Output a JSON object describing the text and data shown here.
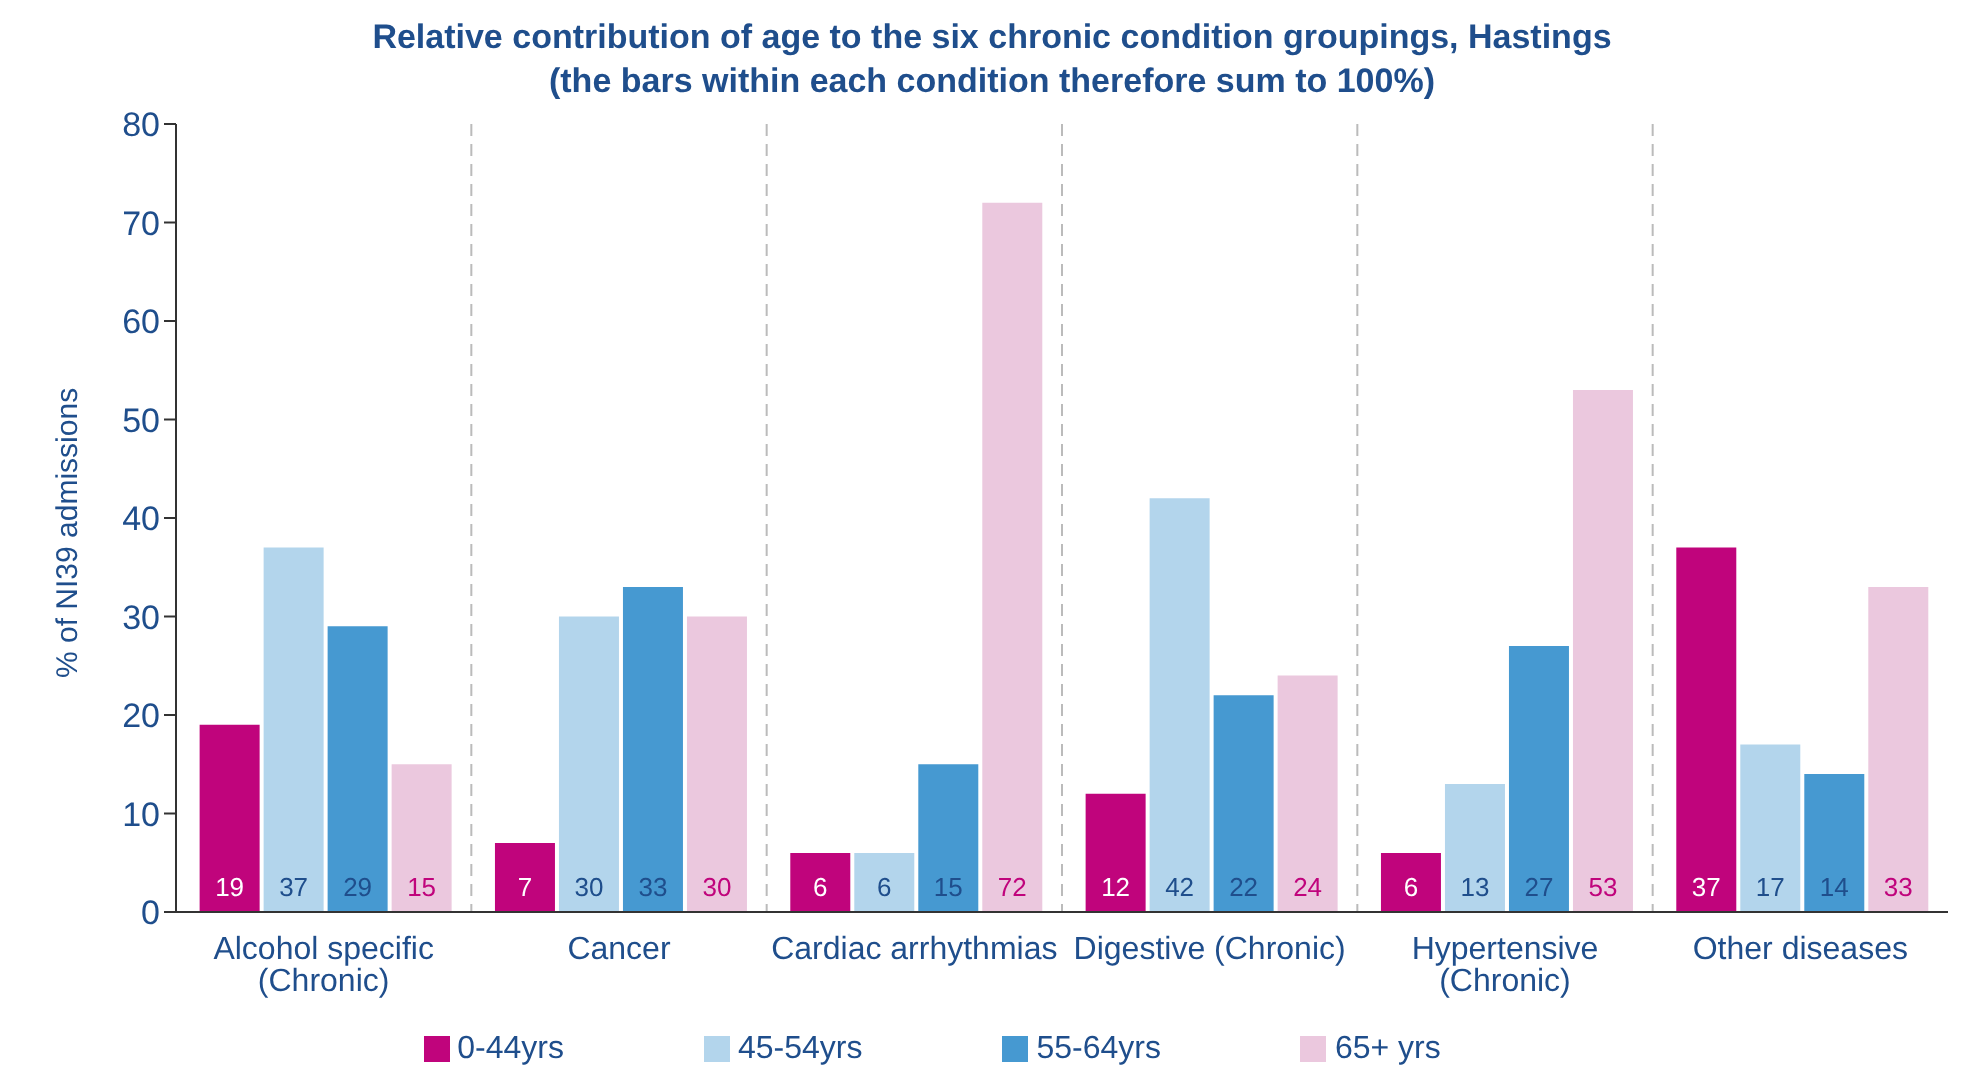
{
  "chart_data": {
    "type": "bar",
    "title": "Relative contribution of age to the six chronic condition groupings, Hastings",
    "subtitle": "(the bars within each condition therefore sum to 100%)",
    "ylabel": "% of NI39 admissions",
    "categories": [
      "Alcohol specific (Chronic)",
      "Cancer",
      "Cardiac arrhythmias",
      "Digestive (Chronic)",
      "Hypertensive (Chronic)",
      "Other diseases"
    ],
    "series": [
      {
        "name": "0-44yrs",
        "color": "#c0047c",
        "values": [
          19,
          7,
          6,
          12,
          6,
          37
        ]
      },
      {
        "name": "45-54yrs",
        "color": "#b3d5ec",
        "values": [
          37,
          30,
          6,
          42,
          13,
          17
        ]
      },
      {
        "name": "55-64yrs",
        "color": "#4699d1",
        "values": [
          29,
          33,
          15,
          22,
          27,
          14
        ]
      },
      {
        "name": "65+ yrs",
        "color": "#ebc8de",
        "values": [
          15,
          30,
          72,
          24,
          53,
          33
        ]
      }
    ],
    "ylim": [
      0,
      80
    ],
    "yticks": [
      0,
      10,
      20,
      30,
      40,
      50,
      60,
      70,
      80
    ],
    "grid": "x",
    "legend": "bottom",
    "data_labels": true
  }
}
